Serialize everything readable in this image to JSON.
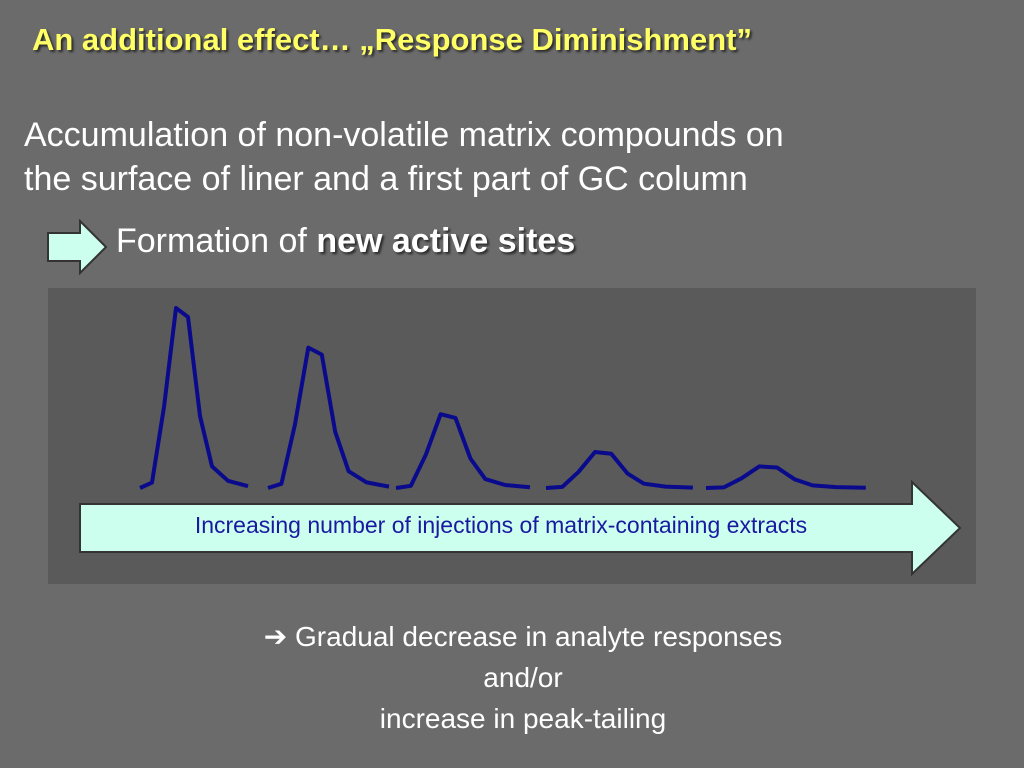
{
  "slide": {
    "title_prefix": "An additional effect… „",
    "title_emphasis": "Response Diminishment”",
    "paragraph_line1": "Accumulation of non-volatile matrix compounds on",
    "paragraph_line2": "the surface of liner and a first part of GC column",
    "formation_prefix": "Formation of ",
    "formation_emphasis": "new active sites",
    "arrow_label": "Increasing number of injections of matrix-containing extracts",
    "conclusion_arrow": "➔",
    "conclusion_line1": " Gradual decrease in analyte responses",
    "conclusion_line2": "and/or",
    "conclusion_line3": "increase in peak-tailing"
  },
  "colors": {
    "background": "#6b6b6b",
    "title": "#ffff66",
    "peak_stroke": "#0a0a8c",
    "arrow_fill": "#ccffee",
    "arrow_text": "#1a1aa0"
  },
  "peak_heights": [
    1.0,
    0.78,
    0.41,
    0.2,
    0.12
  ]
}
